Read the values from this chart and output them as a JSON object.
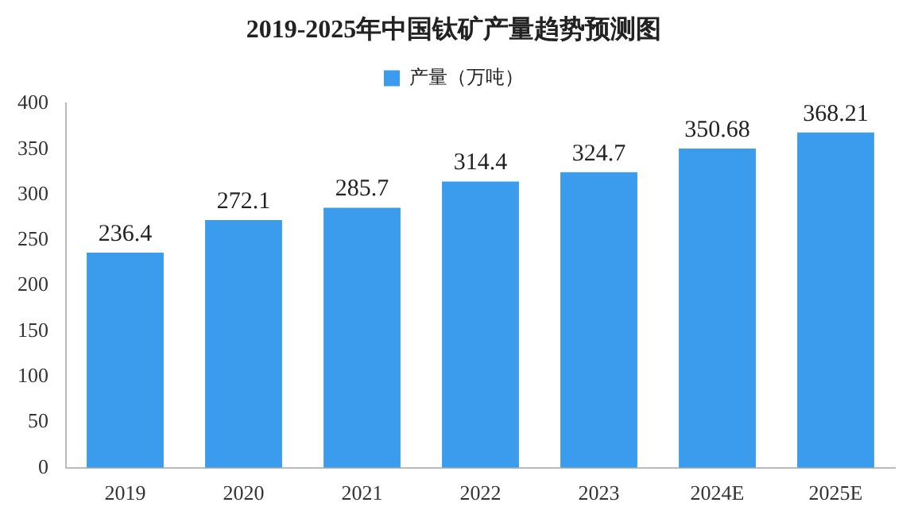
{
  "chart_data": {
    "type": "bar",
    "title": "2019-2025年中国钛矿产量趋势预测图",
    "categories": [
      "2019",
      "2020",
      "2021",
      "2022",
      "2023",
      "2024E",
      "2025E"
    ],
    "series": [
      {
        "name": "产量（万吨）",
        "color": "#3b9cee",
        "values": [
          236.4,
          272.1,
          285.7,
          314.4,
          324.7,
          350.68,
          368.21
        ]
      }
    ],
    "ylim": [
      0,
      400
    ],
    "yticks": [
      0,
      50,
      100,
      150,
      200,
      250,
      300,
      350,
      400
    ],
    "grid": false,
    "legend": "top",
    "data_labels": true
  }
}
